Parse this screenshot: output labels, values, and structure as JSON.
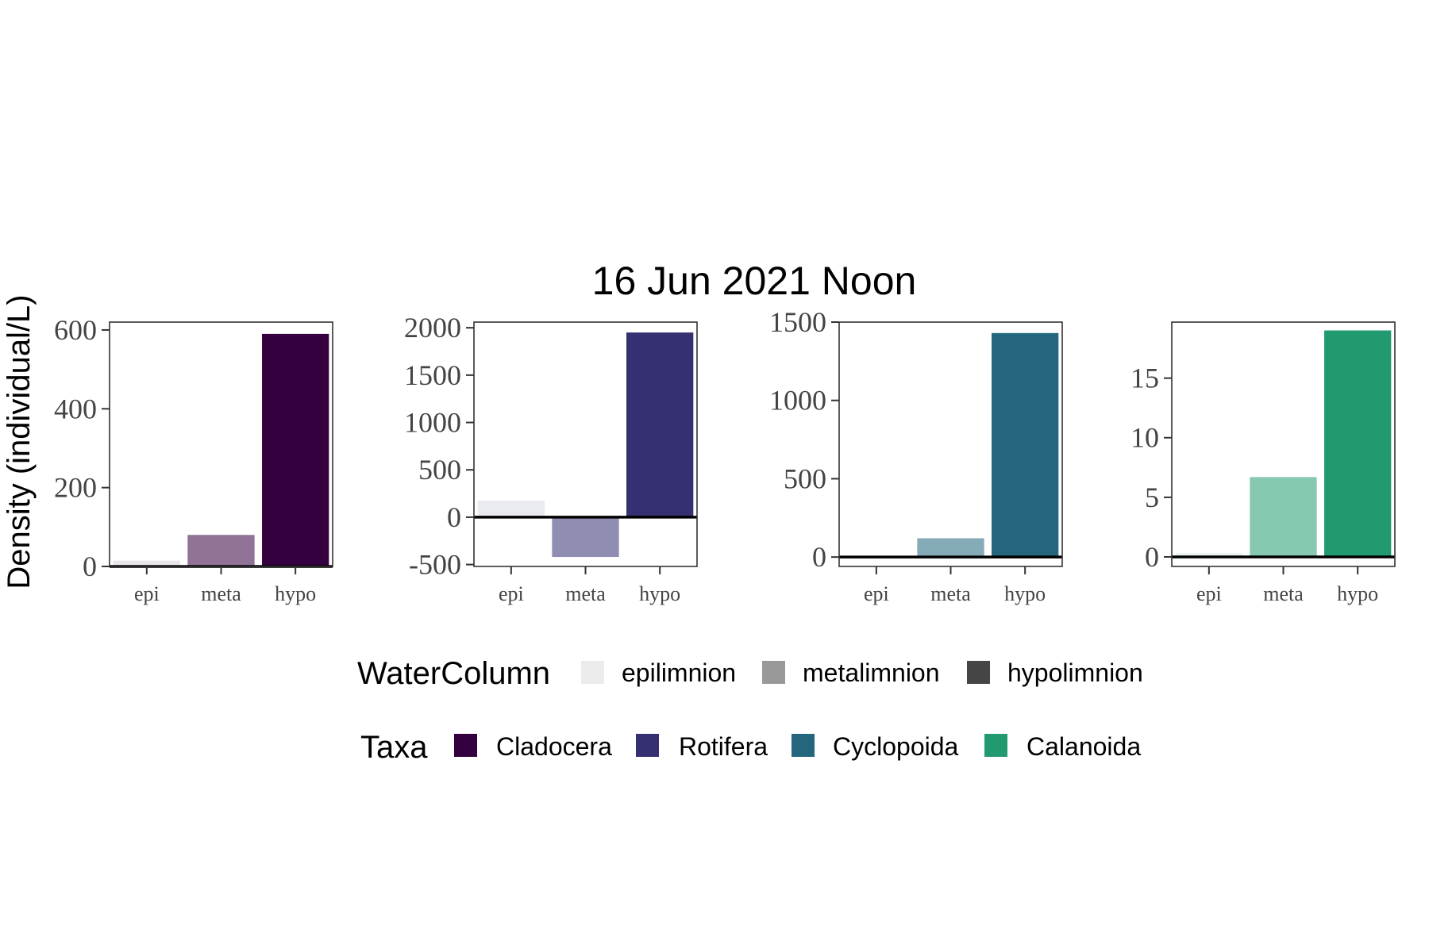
{
  "chart_data": {
    "type": "bar",
    "title": "16 Jun 2021 Noon",
    "ylabel": "Density (individual/L)",
    "categories": [
      "epi",
      "meta",
      "hypo"
    ],
    "panels": [
      {
        "taxon": "Cladocera",
        "values": [
          15,
          80,
          590
        ],
        "ylim": [
          0,
          620
        ],
        "yticks": [
          0,
          200,
          400,
          600
        ],
        "ytick_labels": [
          "0",
          "200",
          "400",
          "600"
        ]
      },
      {
        "taxon": "Rotifera",
        "values": [
          175,
          -420,
          1950
        ],
        "ylim": [
          -520,
          2060
        ],
        "yticks": [
          -500,
          0,
          500,
          1000,
          1500,
          2000
        ],
        "ytick_labels": [
          "-500",
          "0",
          "500",
          "1000",
          "1500",
          "2000"
        ]
      },
      {
        "taxon": "Cyclopoida",
        "values": [
          5,
          120,
          1430
        ],
        "ylim": [
          -60,
          1500
        ],
        "yticks": [
          0,
          500,
          1000,
          1500
        ],
        "ytick_labels": [
          "0",
          "500",
          "1000",
          "1500"
        ]
      },
      {
        "taxon": "Calanoida",
        "values": [
          0.3,
          6.7,
          19
        ],
        "ylim": [
          -0.8,
          19.7
        ],
        "yticks": [
          0,
          5,
          10,
          15
        ],
        "ytick_labels": [
          "0",
          "5",
          "10",
          "15"
        ]
      }
    ],
    "legends": [
      {
        "title": "WaterColumn",
        "items": [
          {
            "label": "epilimnion",
            "color": "#ebebeb"
          },
          {
            "label": "metalimnion",
            "color": "#999999"
          },
          {
            "label": "hypolimnion",
            "color": "#454545"
          }
        ]
      },
      {
        "title": "Taxa",
        "items": [
          {
            "label": "Cladocera",
            "color": "#35003f"
          },
          {
            "label": "Rotifera",
            "color": "#343072"
          },
          {
            "label": "Cyclopoida",
            "color": "#23667d"
          },
          {
            "label": "Calanoida",
            "color": "#229a6f"
          }
        ]
      }
    ],
    "bar_alpha": [
      0.1,
      0.55,
      1.0
    ],
    "grid": false,
    "legend_position": "bottom"
  }
}
